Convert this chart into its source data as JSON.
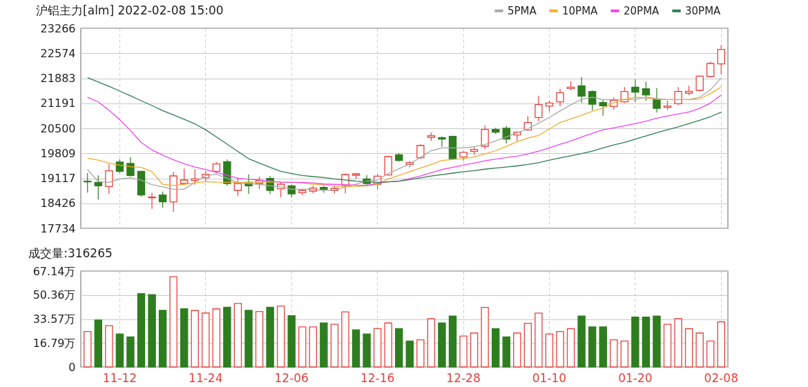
{
  "chart_data": [
    {
      "type": "candlestick",
      "title": "沪铝主力[alm] 2022-02-08 15:00",
      "categories": [
        null,
        null,
        null,
        null,
        null,
        null,
        null,
        null,
        null,
        null,
        null,
        null,
        null,
        null,
        null,
        null,
        null,
        null,
        null,
        null,
        null,
        null,
        null,
        null,
        null,
        null,
        null,
        null,
        null,
        null,
        null,
        null,
        null,
        null,
        null,
        null,
        null,
        null,
        null,
        null,
        null,
        null,
        null,
        null,
        null,
        null,
        null,
        null,
        null,
        null,
        null,
        null,
        null,
        null,
        null,
        null,
        null,
        null,
        null,
        null
      ],
      "ohlc": [
        [
          19040,
          19260,
          18720,
          19020
        ],
        [
          19006,
          19196,
          18529,
          18910
        ],
        [
          18891,
          19515,
          18688,
          19324
        ],
        [
          19565,
          19642,
          19260,
          19311
        ],
        [
          19528,
          19705,
          19165,
          19196
        ],
        [
          19311,
          19324,
          18611,
          18656
        ],
        [
          18580,
          18720,
          18275,
          18600
        ],
        [
          18656,
          18751,
          18306,
          18465
        ],
        [
          18465,
          19292,
          18192,
          19184
        ],
        [
          18974,
          19388,
          18954,
          19069
        ],
        [
          19057,
          19369,
          18942,
          19101
        ],
        [
          19133,
          19324,
          19037,
          19228
        ],
        [
          19311,
          19565,
          19260,
          19515
        ],
        [
          19578,
          19642,
          18910,
          18974
        ],
        [
          18783,
          19133,
          18624,
          18974
        ],
        [
          19006,
          19228,
          18688,
          18910
        ],
        [
          18974,
          19165,
          18815,
          19057
        ],
        [
          19114,
          19177,
          18688,
          18783
        ],
        [
          18828,
          19006,
          18592,
          18955
        ],
        [
          18910,
          18942,
          18592,
          18688
        ],
        [
          18720,
          18828,
          18656,
          18783
        ],
        [
          18764,
          18910,
          18701,
          18847
        ],
        [
          18866,
          18910,
          18720,
          18815
        ],
        [
          18783,
          18898,
          18701,
          18840
        ],
        [
          18923,
          19254,
          18701,
          19222
        ],
        [
          19203,
          19260,
          19101,
          19241
        ],
        [
          19101,
          19209,
          18929,
          18974
        ],
        [
          18955,
          19228,
          18815,
          19177
        ],
        [
          19209,
          19743,
          19196,
          19718
        ],
        [
          19769,
          19813,
          19578,
          19610
        ],
        [
          19502,
          19591,
          19419,
          19553
        ],
        [
          19686,
          20055,
          19654,
          20023
        ],
        [
          20252,
          20379,
          20150,
          20296
        ],
        [
          20239,
          20277,
          19991,
          20201
        ],
        [
          20277,
          20296,
          19642,
          19661
        ],
        [
          19705,
          19864,
          19610,
          19833
        ],
        [
          19864,
          19979,
          19769,
          19915
        ],
        [
          20004,
          20576,
          19928,
          20468
        ],
        [
          20468,
          20513,
          20341,
          20392
        ],
        [
          20500,
          20563,
          20074,
          20201
        ],
        [
          20316,
          20417,
          20150,
          20392
        ],
        [
          20456,
          20837,
          20437,
          20659
        ],
        [
          20799,
          21403,
          20691,
          21155
        ],
        [
          21117,
          21263,
          20964,
          21200
        ],
        [
          21231,
          21594,
          21104,
          21486
        ],
        [
          21600,
          21804,
          21549,
          21638
        ],
        [
          21677,
          21912,
          21200,
          21390
        ],
        [
          21518,
          21549,
          20996,
          21168
        ],
        [
          21212,
          21295,
          20850,
          21123
        ],
        [
          21104,
          21359,
          21009,
          21276
        ],
        [
          21231,
          21638,
          21200,
          21518
        ],
        [
          21638,
          21848,
          21231,
          21499
        ],
        [
          21594,
          21791,
          21263,
          21422
        ],
        [
          21308,
          21613,
          20933,
          21053
        ],
        [
          21079,
          21263,
          21009,
          21117
        ],
        [
          21181,
          21638,
          21143,
          21518
        ],
        [
          21473,
          21677,
          21422,
          21524
        ],
        [
          21549,
          21963,
          21518,
          21944
        ],
        [
          21931,
          22344,
          21905,
          22293
        ],
        [
          22281,
          22802,
          21995,
          22681
        ]
      ],
      "colors": [
        "#2e7d1f",
        "#2e7d1f",
        "#e8413c",
        "#2e7d1f",
        "#2e7d1f",
        "#2e7d1f",
        "#e8413c",
        "#2e7d1f",
        "#e8413c",
        "#e8413c",
        "#e8413c",
        "#e8413c",
        "#e8413c",
        "#2e7d1f",
        "#e8413c",
        "#2e7d1f",
        "#e8413c",
        "#2e7d1f",
        "#e8413c",
        "#2e7d1f",
        "#e8413c",
        "#e8413c",
        "#2e7d1f",
        "#e8413c",
        "#e8413c",
        "#e8413c",
        "#2e7d1f",
        "#e8413c",
        "#e8413c",
        "#2e7d1f",
        "#e8413c",
        "#e8413c",
        "#e8413c",
        "#2e7d1f",
        "#2e7d1f",
        "#e8413c",
        "#e8413c",
        "#e8413c",
        "#2e7d1f",
        "#2e7d1f",
        "#e8413c",
        "#e8413c",
        "#e8413c",
        "#e8413c",
        "#e8413c",
        "#e8413c",
        "#2e7d1f",
        "#2e7d1f",
        "#2e7d1f",
        "#e8413c",
        "#e8413c",
        "#2e7d1f",
        "#2e7d1f",
        "#2e7d1f",
        "#e8413c",
        "#e8413c",
        "#e8413c",
        "#e8413c",
        "#e8413c",
        "#e8413c"
      ],
      "series": [
        {
          "name": "5PMA",
          "type": "line",
          "color": "#a8a8a8",
          "values": [
            19356,
            19030,
            19006,
            19101,
            19133,
            19069,
            18942,
            18879,
            18815,
            18815,
            19006,
            19190,
            19228,
            19120,
            18990,
            18974,
            18950,
            18910,
            18880,
            18815,
            18815,
            18815,
            18783,
            18790,
            18870,
            18955,
            19040,
            19069,
            19250,
            19380,
            19515,
            19700,
            19880,
            19960,
            19960,
            19960,
            19990,
            20050,
            20150,
            20260,
            20380,
            20490,
            20640,
            20800,
            20980,
            21150,
            21300,
            21360,
            21295,
            21295,
            21300,
            21300,
            21359,
            21320,
            21295,
            21295,
            21295,
            21359,
            21560,
            21900
          ]
        },
        {
          "name": "10PMA",
          "type": "line",
          "color": "#f0ac2e",
          "values": [
            19673,
            19620,
            19540,
            19480,
            19440,
            19420,
            19300,
            18950,
            18920,
            18950,
            18990,
            19025,
            19010,
            19006,
            19006,
            19006,
            19010,
            19020,
            19010,
            19006,
            18990,
            18955,
            18940,
            18900,
            18880,
            18890,
            18910,
            18950,
            19100,
            19200,
            19300,
            19400,
            19500,
            19610,
            19640,
            19660,
            19710,
            19790,
            19880,
            20000,
            20130,
            20230,
            20300,
            20480,
            20660,
            20760,
            20860,
            20970,
            21060,
            21200,
            21300,
            21359,
            21340,
            21300,
            21295,
            21295,
            21295,
            21310,
            21460,
            21645
          ]
        },
        {
          "name": "20PMA",
          "type": "line",
          "color": "#ee44ee",
          "values": [
            21359,
            21230,
            21000,
            20740,
            20440,
            20110,
            19900,
            19760,
            19630,
            19520,
            19430,
            19360,
            19280,
            19200,
            19120,
            19090,
            19070,
            19040,
            19010,
            19006,
            19006,
            18990,
            18960,
            18950,
            18940,
            18930,
            18920,
            18980,
            19020,
            19040,
            19110,
            19180,
            19270,
            19360,
            19420,
            19480,
            19540,
            19600,
            19650,
            19690,
            19730,
            19790,
            19870,
            19960,
            20060,
            20150,
            20260,
            20360,
            20460,
            20510,
            20570,
            20630,
            20700,
            20780,
            20840,
            20900,
            20950,
            21050,
            21200,
            21422
          ]
        },
        {
          "name": "30PMA",
          "type": "line",
          "color": "#2e7d4e",
          "values": [
            21899,
            21780,
            21660,
            21530,
            21400,
            21263,
            21130,
            20990,
            20870,
            20750,
            20620,
            20460,
            20260,
            20060,
            19860,
            19660,
            19540,
            19420,
            19310,
            19250,
            19196,
            19165,
            19140,
            19100,
            19070,
            19040,
            19020,
            19006,
            19020,
            19040,
            19080,
            19130,
            19180,
            19220,
            19260,
            19300,
            19330,
            19370,
            19400,
            19430,
            19460,
            19500,
            19550,
            19620,
            19680,
            19740,
            19800,
            19870,
            19960,
            20040,
            20110,
            20200,
            20290,
            20380,
            20460,
            20540,
            20630,
            20720,
            20820,
            20945
          ]
        }
      ],
      "ylim": [
        17734,
        23266
      ],
      "yticks": [
        17734,
        18426,
        19117,
        19809,
        20500,
        21191,
        21883,
        22574,
        23266
      ],
      "grid": true,
      "legend": "top right"
    },
    {
      "type": "bar",
      "title": "成交量:316265",
      "categories": [
        null,
        null,
        null,
        "11-12",
        null,
        null,
        null,
        null,
        null,
        null,
        null,
        "11-24",
        null,
        null,
        null,
        null,
        null,
        null,
        null,
        "12-06",
        null,
        null,
        null,
        null,
        null,
        null,
        null,
        "12-16",
        null,
        null,
        null,
        null,
        null,
        null,
        null,
        "12-28",
        null,
        null,
        null,
        null,
        null,
        null,
        null,
        "01-10",
        null,
        null,
        null,
        null,
        null,
        null,
        null,
        "01-20",
        null,
        null,
        null,
        null,
        null,
        null,
        null,
        "02-08"
      ],
      "values": [
        24.8,
        32.9,
        28.9,
        23.1,
        21.1,
        51.4,
        50.6,
        39.7,
        63.2,
        40.7,
        39.6,
        37.8,
        40.7,
        41.8,
        44.5,
        39.7,
        38.8,
        41.8,
        42.7,
        35.9,
        28.1,
        28.1,
        30.8,
        29.9,
        38.6,
        26.0,
        23.1,
        26.9,
        30.8,
        26.9,
        18.2,
        19.0,
        33.8,
        30.8,
        35.7,
        21.7,
        23.8,
        41.7,
        26.8,
        21.1,
        23.8,
        30.6,
        37.7,
        23.1,
        24.8,
        26.8,
        35.7,
        28.1,
        28.1,
        19.0,
        18.2,
        34.9,
        34.9,
        35.7,
        29.9,
        33.8,
        26.8,
        23.8,
        18.2,
        31.63
      ],
      "colors": [
        "#e8413c",
        "#2e7d1f",
        "#e8413c",
        "#2e7d1f",
        "#2e7d1f",
        "#2e7d1f",
        "#2e7d1f",
        "#2e7d1f",
        "#e8413c",
        "#2e7d1f",
        "#e8413c",
        "#e8413c",
        "#e8413c",
        "#2e7d1f",
        "#e8413c",
        "#2e7d1f",
        "#e8413c",
        "#2e7d1f",
        "#e8413c",
        "#2e7d1f",
        "#e8413c",
        "#e8413c",
        "#2e7d1f",
        "#e8413c",
        "#e8413c",
        "#2e7d1f",
        "#2e7d1f",
        "#e8413c",
        "#e8413c",
        "#2e7d1f",
        "#2e7d1f",
        "#e8413c",
        "#e8413c",
        "#2e7d1f",
        "#2e7d1f",
        "#e8413c",
        "#e8413c",
        "#e8413c",
        "#2e7d1f",
        "#2e7d1f",
        "#e8413c",
        "#e8413c",
        "#e8413c",
        "#e8413c",
        "#e8413c",
        "#e8413c",
        "#2e7d1f",
        "#2e7d1f",
        "#2e7d1f",
        "#e8413c",
        "#e8413c",
        "#2e7d1f",
        "#2e7d1f",
        "#2e7d1f",
        "#e8413c",
        "#e8413c",
        "#e8413c",
        "#e8413c",
        "#e8413c",
        "#e8413c"
      ],
      "ylim": [
        0,
        67.14
      ],
      "yticks": [
        0,
        {
          "value": 16.79,
          "label": "16.79万"
        },
        {
          "value": 33.57,
          "label": "33.57万"
        },
        {
          "value": 50.36,
          "label": "50.36万"
        },
        {
          "value": 67.14,
          "label": "67.14万"
        }
      ],
      "grid": true
    }
  ]
}
